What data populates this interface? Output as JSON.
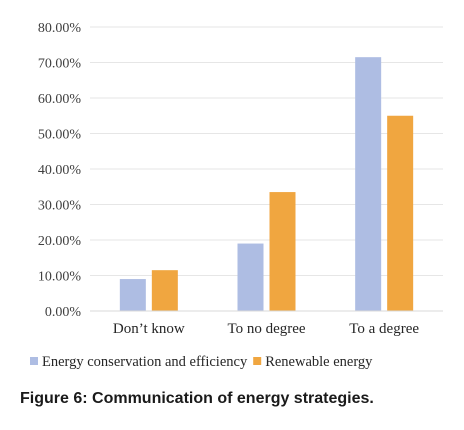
{
  "caption": "Figure 6: Communication of energy strategies.",
  "chart_data": {
    "type": "bar",
    "categories": [
      "Don’t know",
      "To no degree",
      "To a degree"
    ],
    "series": [
      {
        "name": "Energy conservation and efficiency",
        "color": "#aebde3",
        "values": [
          9.0,
          19.0,
          71.5
        ]
      },
      {
        "name": "Renewable energy",
        "color": "#f0a640",
        "values": [
          11.5,
          33.5,
          55.0
        ]
      }
    ],
    "ylim": [
      0,
      80
    ],
    "yticks": [
      0,
      10,
      20,
      30,
      40,
      50,
      60,
      70,
      80
    ],
    "ytick_labels": [
      "0.00%",
      "10.00%",
      "20.00%",
      "30.00%",
      "40.00%",
      "50.00%",
      "60.00%",
      "70.00%",
      "80.00%"
    ],
    "grid": true,
    "legend_position": "bottom"
  }
}
